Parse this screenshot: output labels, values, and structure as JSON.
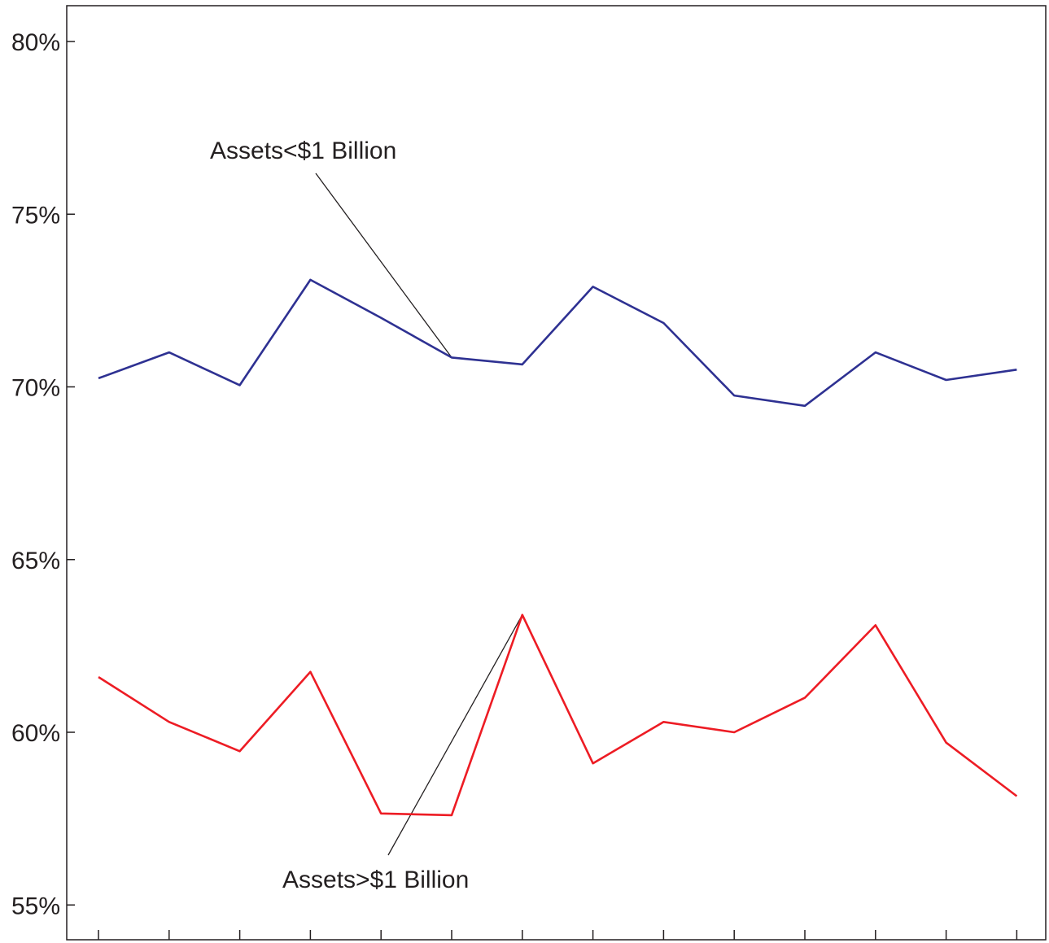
{
  "chart_data": {
    "type": "line",
    "title": "",
    "xlabel": "",
    "ylabel": "",
    "x": [
      1,
      2,
      3,
      4,
      5,
      6,
      7,
      8,
      9,
      10,
      11,
      12,
      13,
      14
    ],
    "ylim": [
      55,
      81
    ],
    "yticks": [
      80,
      75,
      70,
      65,
      60,
      55
    ],
    "ytick_labels": [
      "80%",
      "75%",
      "70%",
      "65%",
      "60%",
      "55%"
    ],
    "series": [
      {
        "color": "#2e3192",
        "values": [
          70.25,
          71.0,
          70.05,
          73.1,
          72.0,
          70.85,
          70.65,
          72.9,
          71.85,
          69.75,
          69.45,
          71.0,
          70.2,
          70.5
        ]
      },
      {
        "color": "#ed1c24",
        "values": [
          61.6,
          60.3,
          59.45,
          61.75,
          57.65,
          57.6,
          63.4,
          59.1,
          60.3,
          60.0,
          61.0,
          63.1,
          59.7,
          58.15
        ]
      }
    ],
    "annotations": [
      {
        "text": "Assets<$1 Billion",
        "series": 0,
        "point_index": 5
      },
      {
        "text": "Assets>$1 Billion",
        "series": 1,
        "point_index": 6
      }
    ],
    "grid": false
  }
}
